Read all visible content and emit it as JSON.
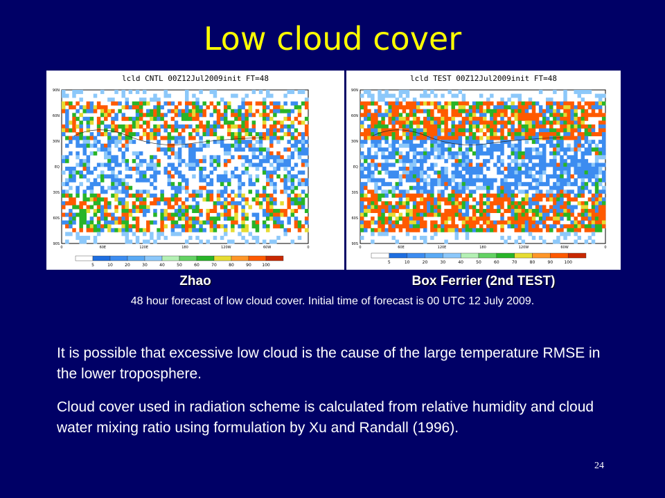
{
  "slide": {
    "title": "Low cloud cover",
    "page_number": "24"
  },
  "figure": {
    "left_panel": {
      "title": "lcld CNTL 00Z12Jul2009init FT=48",
      "scheme_label": "Zhao",
      "lat_labels": [
        "90N",
        "60N",
        "30N",
        "EQ",
        "30S",
        "60S",
        "90S"
      ],
      "lon_labels": [
        "0",
        "60E",
        "120E",
        "180",
        "120W",
        "60W",
        "0"
      ]
    },
    "right_panel": {
      "title": "lcld TEST 00Z12Jul2009init FT=48",
      "scheme_label": "Box Ferrier (2nd TEST)",
      "lat_labels": [
        "90N",
        "60N",
        "30N",
        "EQ",
        "30S",
        "60S",
        "90S"
      ],
      "lon_labels": [
        "0",
        "60E",
        "120E",
        "180",
        "120W",
        "60W",
        "0"
      ]
    },
    "colorbar": {
      "labels": [
        "5",
        "10",
        "20",
        "30",
        "40",
        "50",
        "60",
        "70",
        "80",
        "90",
        "100"
      ],
      "colors": [
        "#ffffff",
        "#1e6ee0",
        "#3c8cf0",
        "#5aaaf5",
        "#8cc8fa",
        "#b4f0b4",
        "#64d264",
        "#28b428",
        "#e6dc32",
        "#ff9628",
        "#ff5a00",
        "#c82800"
      ]
    },
    "caption": "48 hour forecast of low cloud cover. Initial time of forecast is 00 UTC 12 July 2009."
  },
  "body": {
    "paragraph_1": "It is possible that excessive low cloud is the cause of the large temperature RMSE in the lower troposphere.",
    "paragraph_2": "Cloud cover used in radiation scheme is calculated from relative humidity and cloud water mixing ratio using formulation by Xu and Randall (1996)."
  }
}
